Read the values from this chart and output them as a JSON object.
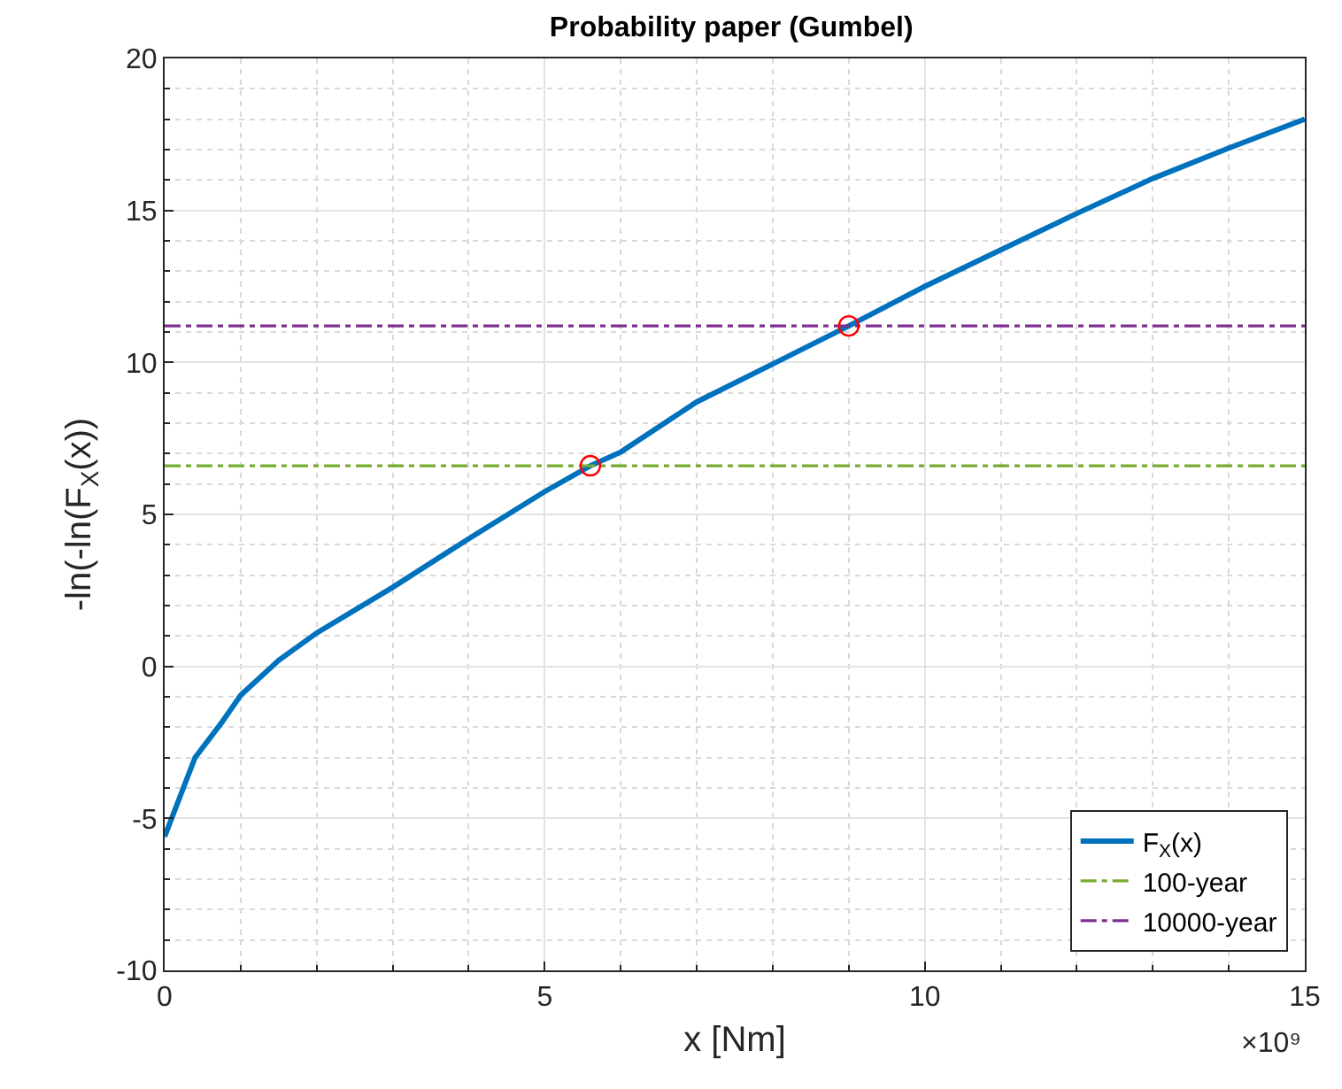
{
  "chart_data": {
    "type": "line",
    "title": "Probability paper (Gumbel)",
    "xlabel": "x [Nm]",
    "ylabel": "-ln(-ln(F$_{X}$(x))",
    "xlim": [
      0,
      15
    ],
    "xticks": [
      0,
      5,
      10,
      15
    ],
    "ylim": [
      -10,
      20
    ],
    "yticks": [
      -10,
      -5,
      0,
      5,
      10,
      15,
      20
    ],
    "grid": true,
    "legend": "bottom right",
    "annotations": [
      "×10⁹"
    ],
    "series": [
      {
        "name": "F$_{X}$(x)",
        "color": "#0072bd",
        "line_style": "solid",
        "marker": "none",
        "x": [
          0,
          0.4,
          0.75,
          1.0,
          1.5,
          2,
          3,
          4,
          5,
          5.6,
          6,
          7,
          8,
          9,
          10,
          11,
          12,
          13,
          14,
          15
        ],
        "values": [
          -5.6,
          -3.0,
          -1.85,
          -0.95,
          0.2,
          1.1,
          2.6,
          4.2,
          5.75,
          6.6,
          7.05,
          8.7,
          9.95,
          11.2,
          12.5,
          13.7,
          14.9,
          16.05,
          17.05,
          18.0
        ]
      },
      {
        "name": "100-year",
        "color": "#77ac30",
        "type": "line",
        "line_style": "dashdot",
        "marker": "none",
        "x": [
          0,
          15
        ],
        "values": [
          6.6,
          6.6
        ]
      },
      {
        "name": "10000-year",
        "color": "#7e2f8e",
        "type": "line",
        "line_style": "dashdot",
        "marker": "none",
        "x": [
          0,
          15
        ],
        "values": [
          11.2,
          11.2
        ]
      },
      {
        "color": "#ff0000",
        "type": "scatter",
        "marker": "circle",
        "x": [
          5.6,
          9.0
        ],
        "values": [
          6.6,
          11.2
        ]
      }
    ]
  }
}
